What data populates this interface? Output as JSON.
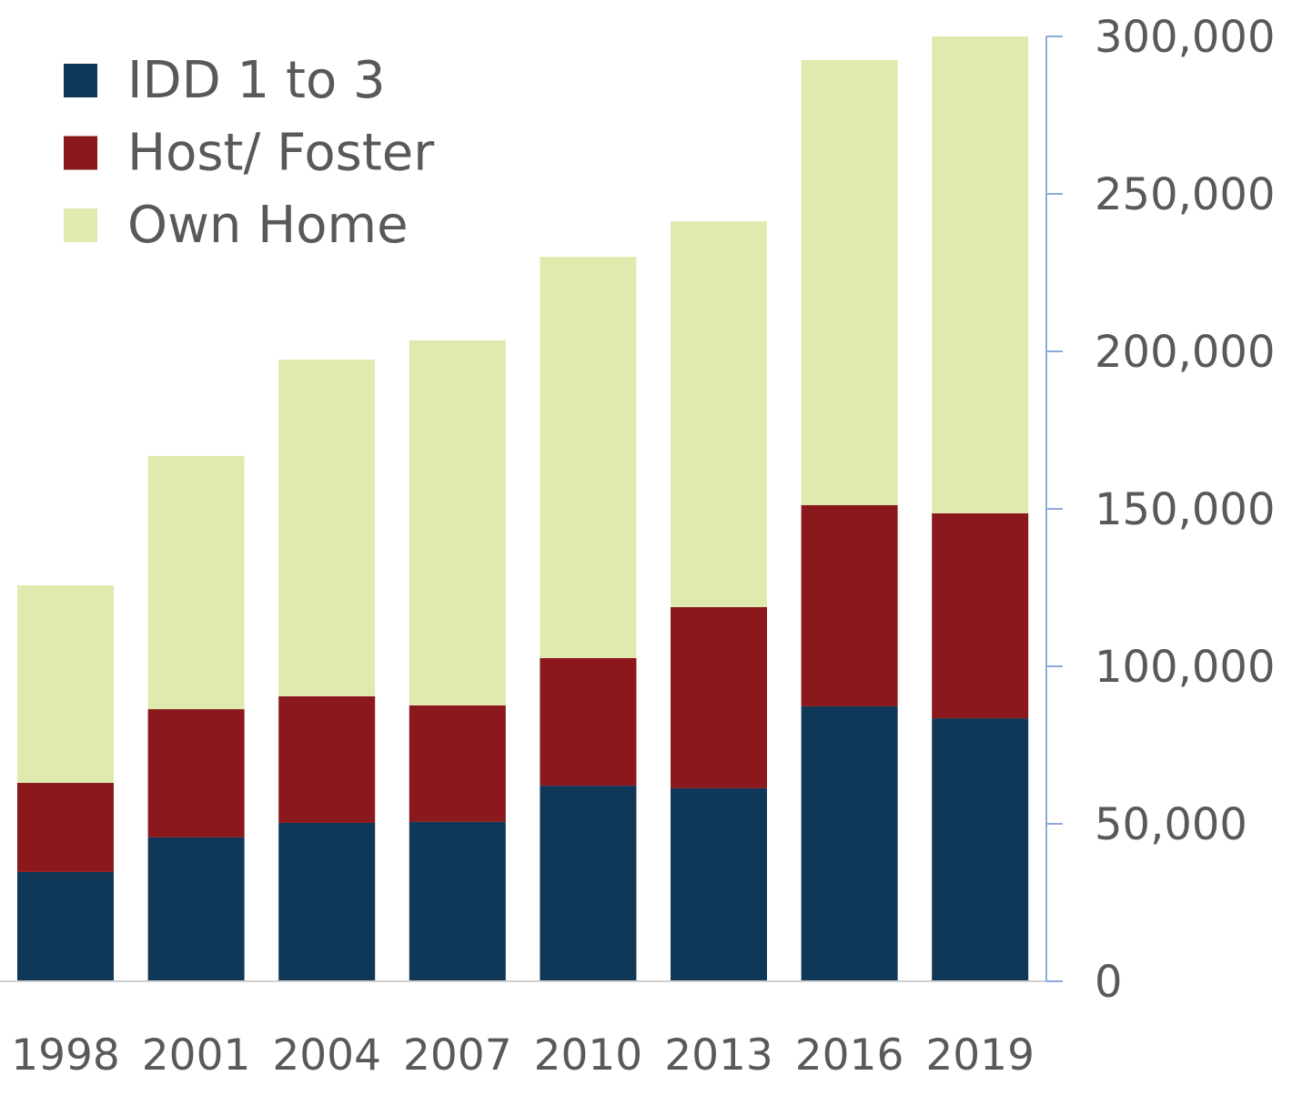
{
  "chart_data": {
    "type": "bar",
    "stacked": true,
    "title": "",
    "xlabel": "",
    "ylabel": "",
    "categories": [
      "1998",
      "2001",
      "2004",
      "2007",
      "2010",
      "2013",
      "2016",
      "2019"
    ],
    "series": [
      {
        "name": "IDD 1 to 3",
        "color": "#0f3858",
        "values": [
          34700,
          45700,
          50300,
          50600,
          62100,
          61300,
          87300,
          83500
        ]
      },
      {
        "name": "Host/ Foster",
        "color": "#8b181c",
        "values": [
          28300,
          40700,
          40200,
          37000,
          40500,
          57500,
          63900,
          65100
        ]
      },
      {
        "name": "Own Home",
        "color": "#e1eaae",
        "values": [
          62700,
          80400,
          106900,
          115900,
          127400,
          122500,
          141300,
          151400
        ]
      }
    ],
    "ylim": [
      0,
      300000
    ],
    "yticks": [
      0,
      50000,
      100000,
      150000,
      200000,
      250000,
      300000
    ],
    "ytick_labels": [
      "0",
      "50,000",
      "100,000",
      "150,000",
      "200,000",
      "250,000",
      "300,000"
    ],
    "y_axis_side": "right",
    "axis_color": "#8eaadb",
    "grid": false,
    "legend_position": "top-left"
  }
}
